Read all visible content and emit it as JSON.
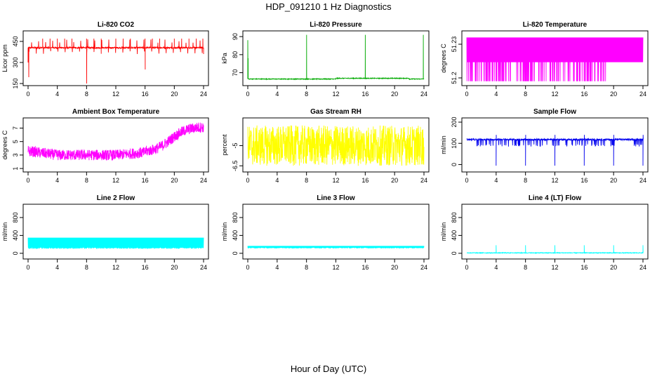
{
  "title": "HDP_091210  1 Hz Diagnostics",
  "x_caption": "Hour of Day (UTC)",
  "chart_data": [
    {
      "type": "line",
      "title": "Li-820 CO2",
      "ylabel": "Licor ppm",
      "color": "#ff0000",
      "xlim": [
        0,
        24
      ],
      "ylim": [
        150,
        510
      ],
      "yticks": [
        150,
        300,
        450
      ],
      "xticks": [
        0,
        4,
        8,
        12,
        16,
        20,
        24
      ],
      "pattern": "co2"
    },
    {
      "type": "line",
      "title": "Li-820 Pressure",
      "ylabel": "kPa",
      "color": "#00aa00",
      "xlim": [
        0,
        24
      ],
      "ylim": [
        64,
        92
      ],
      "yticks": [
        70,
        80,
        90
      ],
      "xticks": [
        0,
        4,
        8,
        12,
        16,
        20,
        24
      ],
      "pattern": "pressure"
    },
    {
      "type": "line",
      "title": "Li-820 Temperature",
      "ylabel": "degrees C",
      "color": "#ff00ff",
      "xlim": [
        0,
        24
      ],
      "ylim": [
        51.195,
        51.24
      ],
      "yticks": [
        51.2,
        51.23
      ],
      "xticks": [
        0,
        4,
        8,
        12,
        16,
        20,
        24
      ],
      "pattern": "licortemp"
    },
    {
      "type": "line",
      "title": "Ambient Box Temperature",
      "ylabel": "degrees C",
      "color": "#ff00ff",
      "xlim": [
        0,
        24
      ],
      "ylim": [
        0.8,
        8.2
      ],
      "yticks": [
        1,
        3,
        5,
        7
      ],
      "xticks": [
        0,
        4,
        8,
        12,
        16,
        20,
        24
      ],
      "pattern": "ambient"
    },
    {
      "type": "line",
      "title": "Gas Stream RH",
      "ylabel": "percent",
      "color": "#ffff00",
      "xlim": [
        0,
        24
      ],
      "ylim": [
        -6.8,
        -3.1
      ],
      "yticks": [
        -6.5,
        -5.0
      ],
      "xticks": [
        0,
        4,
        8,
        12,
        16,
        20,
        24
      ],
      "pattern": "rh"
    },
    {
      "type": "line",
      "title": "Sample Flow",
      "ylabel": "ml/min",
      "color": "#0000ee",
      "xlim": [
        0,
        24
      ],
      "ylim": [
        -25,
        210
      ],
      "yticks": [
        0,
        100,
        200
      ],
      "xticks": [
        0,
        4,
        8,
        12,
        16,
        20,
        24
      ],
      "pattern": "sampleflow"
    },
    {
      "type": "line",
      "title": "Line 2 Flow",
      "ylabel": "ml/min",
      "color": "#00ffff",
      "xlim": [
        0,
        24
      ],
      "ylim": [
        -80,
        1050
      ],
      "yticks": [
        0,
        400,
        800
      ],
      "xticks": [
        0,
        4,
        8,
        12,
        16,
        20,
        24
      ],
      "pattern": "line2"
    },
    {
      "type": "line",
      "title": "Line 3 Flow",
      "ylabel": "ml/min",
      "color": "#00ffff",
      "xlim": [
        0,
        24
      ],
      "ylim": [
        -80,
        1050
      ],
      "yticks": [
        0,
        400,
        800
      ],
      "xticks": [
        0,
        4,
        8,
        12,
        16,
        20,
        24
      ],
      "pattern": "line3"
    },
    {
      "type": "line",
      "title": "Line 4 (LT) Flow",
      "ylabel": "ml/min",
      "color": "#00ffff",
      "xlim": [
        0,
        24
      ],
      "ylim": [
        -80,
        1050
      ],
      "yticks": [
        0,
        400,
        800
      ],
      "xticks": [
        0,
        4,
        8,
        12,
        16,
        20,
        24
      ],
      "pattern": "line4"
    }
  ]
}
